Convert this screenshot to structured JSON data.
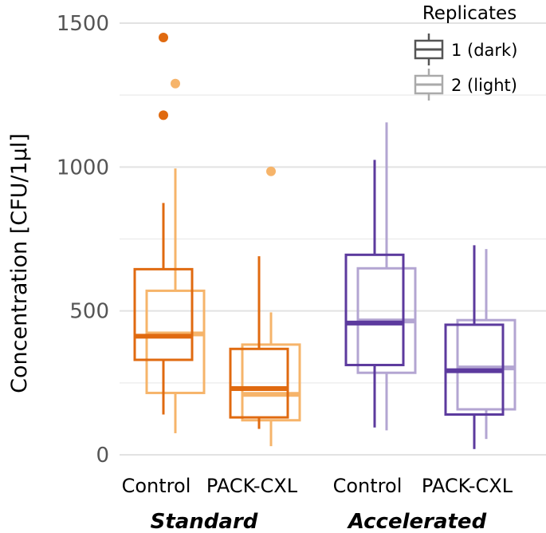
{
  "chart_data": {
    "type": "box",
    "ylabel": "Concentration [CFU/1µl]",
    "ylim": [
      0,
      1500
    ],
    "yticks": [
      "0",
      "500",
      "1000",
      "1500"
    ],
    "grid": true,
    "groups": [
      {
        "label": "Standard",
        "categories": [
          {
            "label": "Control",
            "color": "#E06A10",
            "boxes": [
              {
                "replicate": "1",
                "whisker_low": 140,
                "q1": 330,
                "median": 412,
                "q3": 645,
                "whisker_high": 875,
                "outliers": [
                  1180,
                  1450
                ]
              },
              {
                "replicate": "2",
                "whisker_low": 75,
                "q1": 215,
                "median": 420,
                "q3": 570,
                "whisker_high": 995,
                "outliers": [
                  1290
                ]
              }
            ]
          },
          {
            "label": "PACK-CXL",
            "color": "#E06A10",
            "boxes": [
              {
                "replicate": "1",
                "whisker_low": 90,
                "q1": 130,
                "median": 230,
                "q3": 368,
                "whisker_high": 690,
                "outliers": []
              },
              {
                "replicate": "2",
                "whisker_low": 30,
                "q1": 120,
                "median": 210,
                "q3": 383,
                "whisker_high": 495,
                "outliers": [
                  985
                ]
              }
            ]
          }
        ]
      },
      {
        "label": "Accelerated",
        "categories": [
          {
            "label": "Control",
            "color": "#5C3A9E",
            "boxes": [
              {
                "replicate": "1",
                "whisker_low": 95,
                "q1": 312,
                "median": 458,
                "q3": 695,
                "whisker_high": 1025,
                "outliers": []
              },
              {
                "replicate": "2",
                "whisker_low": 85,
                "q1": 285,
                "median": 465,
                "q3": 648,
                "whisker_high": 1155,
                "outliers": []
              }
            ]
          },
          {
            "label": "PACK-CXL",
            "color": "#5C3A9E",
            "boxes": [
              {
                "replicate": "1",
                "whisker_low": 20,
                "q1": 140,
                "median": 292,
                "q3": 452,
                "whisker_high": 728,
                "outliers": []
              },
              {
                "replicate": "2",
                "whisker_low": 55,
                "q1": 158,
                "median": 302,
                "q3": 468,
                "whisker_high": 715,
                "outliers": []
              }
            ]
          }
        ]
      }
    ],
    "legend": {
      "title": "Replicates",
      "position": "top-right",
      "entries": [
        {
          "label": "1 (dark)",
          "color": "#555555"
        },
        {
          "label": "2 (light)",
          "color": "#AAAAAA"
        }
      ]
    }
  }
}
